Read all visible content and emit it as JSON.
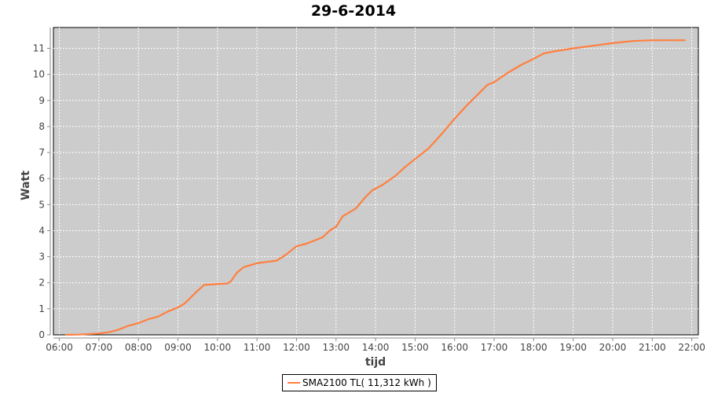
{
  "chart_data": {
    "type": "line",
    "title": "29-6-2014",
    "xlabel": "tijd",
    "ylabel": "Watt",
    "xlim": [
      "05:51",
      "22:10"
    ],
    "ylim": [
      0,
      11.8
    ],
    "grid": true,
    "legend_position": "bottom",
    "background": "#cccccc",
    "x_ticks": [
      "06:00",
      "07:00",
      "08:00",
      "09:00",
      "10:00",
      "11:00",
      "12:00",
      "13:00",
      "14:00",
      "15:00",
      "16:00",
      "17:00",
      "18:00",
      "19:00",
      "20:00",
      "21:00",
      "22:00"
    ],
    "y_ticks": [
      0,
      1,
      2,
      3,
      4,
      5,
      6,
      7,
      8,
      9,
      10,
      11
    ],
    "series": [
      {
        "name": "SMA2100 TL( 11,312 kWh )",
        "color": "#ff7f3f",
        "x": [
          "06:10",
          "06:30",
          "07:00",
          "07:15",
          "07:30",
          "07:45",
          "08:00",
          "08:15",
          "08:30",
          "08:45",
          "09:00",
          "09:10",
          "09:20",
          "09:30",
          "09:40",
          "10:00",
          "10:15",
          "10:20",
          "10:30",
          "10:40",
          "11:00",
          "11:15",
          "11:30",
          "11:45",
          "12:00",
          "12:15",
          "12:30",
          "12:40",
          "12:50",
          "13:00",
          "13:10",
          "13:20",
          "13:30",
          "13:45",
          "13:55",
          "14:10",
          "14:30",
          "14:45",
          "15:00",
          "15:20",
          "15:40",
          "16:00",
          "16:20",
          "16:40",
          "16:50",
          "17:00",
          "17:20",
          "17:40",
          "18:00",
          "18:15",
          "18:30",
          "19:00",
          "19:30",
          "20:00",
          "20:30",
          "21:00",
          "21:50"
        ],
        "y": [
          0,
          0.01,
          0.05,
          0.1,
          0.2,
          0.35,
          0.45,
          0.6,
          0.7,
          0.9,
          1.05,
          1.2,
          1.45,
          1.7,
          1.92,
          1.95,
          1.97,
          2.05,
          2.4,
          2.6,
          2.75,
          2.8,
          2.85,
          3.1,
          3.4,
          3.5,
          3.65,
          3.75,
          4.0,
          4.15,
          4.55,
          4.7,
          4.85,
          5.3,
          5.55,
          5.75,
          6.1,
          6.45,
          6.75,
          7.15,
          7.7,
          8.3,
          8.85,
          9.35,
          9.6,
          9.7,
          10.05,
          10.35,
          10.6,
          10.8,
          10.88,
          11.0,
          11.1,
          11.2,
          11.28,
          11.31,
          11.31
        ]
      }
    ]
  }
}
